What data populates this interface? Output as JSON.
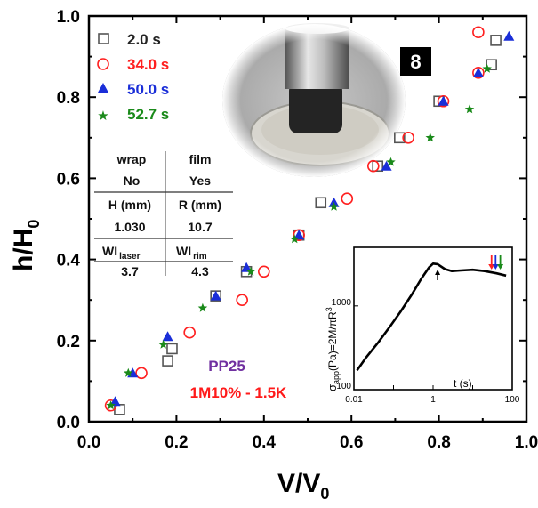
{
  "chart_data": {
    "type": "scatter",
    "xlabel": "V/V",
    "xlabel_sub": "0",
    "ylabel": "h/H",
    "ylabel_sub": "0",
    "xlim": [
      0,
      1.0
    ],
    "ylim": [
      0,
      1.0
    ],
    "xticks": [
      "0.0",
      "0.2",
      "0.4",
      "0.6",
      "0.8",
      "1.0"
    ],
    "yticks": [
      "0.0",
      "0.2",
      "0.4",
      "0.6",
      "0.8",
      "1.0"
    ],
    "legend_position": "top-left",
    "panel_label": "8",
    "series": [
      {
        "name": "2.0 s",
        "marker": "open-square",
        "color": "#555555",
        "x": [
          0.07,
          0.18,
          0.19,
          0.29,
          0.36,
          0.48,
          0.53,
          0.66,
          0.71,
          0.8,
          0.92,
          0.93
        ],
        "y": [
          0.03,
          0.15,
          0.18,
          0.31,
          0.37,
          0.46,
          0.54,
          0.63,
          0.7,
          0.79,
          0.88,
          0.94
        ]
      },
      {
        "name": "34.0 s",
        "marker": "open-circle",
        "color": "#ff2020",
        "x": [
          0.05,
          0.12,
          0.23,
          0.35,
          0.4,
          0.48,
          0.59,
          0.65,
          0.73,
          0.81,
          0.89,
          0.89
        ],
        "y": [
          0.04,
          0.12,
          0.22,
          0.3,
          0.37,
          0.46,
          0.55,
          0.63,
          0.7,
          0.79,
          0.86,
          0.96
        ]
      },
      {
        "name": "50.0 s",
        "marker": "filled-triangle",
        "color": "#1a2ed8",
        "x": [
          0.06,
          0.1,
          0.18,
          0.29,
          0.36,
          0.48,
          0.56,
          0.68,
          0.81,
          0.89,
          0.96
        ],
        "y": [
          0.05,
          0.12,
          0.21,
          0.31,
          0.38,
          0.46,
          0.54,
          0.63,
          0.79,
          0.86,
          0.95
        ]
      },
      {
        "name": "52.7 s",
        "marker": "filled-star",
        "color": "#1a8a1a",
        "x": [
          0.05,
          0.09,
          0.17,
          0.26,
          0.37,
          0.47,
          0.56,
          0.69,
          0.78,
          0.87,
          0.91
        ],
        "y": [
          0.04,
          0.12,
          0.19,
          0.28,
          0.37,
          0.45,
          0.53,
          0.64,
          0.7,
          0.77,
          0.87
        ]
      }
    ],
    "table": {
      "headers": [
        "wrap",
        "film"
      ],
      "rows": [
        [
          "No",
          "Yes"
        ],
        [
          "H (mm)",
          "R (mm)"
        ],
        [
          "1.030",
          "10.7"
        ],
        [
          "WI",
          "WI"
        ],
        [
          "3.7",
          "4.3"
        ]
      ],
      "row3_subscripts": [
        "laser",
        "rim"
      ]
    },
    "annotations": {
      "sample": "PP25",
      "sample_color": "#7030a0",
      "condition": "1M10% - 1.5K",
      "condition_color": "#ff1a1a"
    },
    "inset": {
      "type": "line",
      "xscale": "log",
      "yscale": "log",
      "xlabel": "t (s)",
      "ylabel": "σ",
      "ylabel_sub": "app",
      "ylabel_rest": "(Pa)=2M/πR",
      "ylabel_sup": "3",
      "xticks": [
        "0.01",
        "1",
        "100"
      ],
      "yticks": [
        "100",
        "1000"
      ],
      "xlim": [
        0.01,
        100
      ],
      "ylim": [
        100,
        5000
      ],
      "x": [
        0.012,
        0.02,
        0.04,
        0.08,
        0.15,
        0.3,
        0.5,
        0.8,
        1.0,
        1.3,
        2,
        3,
        5,
        10,
        20,
        40,
        70
      ],
      "y": [
        170,
        240,
        360,
        560,
        850,
        1400,
        2100,
        2900,
        3200,
        3150,
        2750,
        2600,
        2650,
        2700,
        2600,
        2450,
        2300
      ],
      "arrow_times": [
        1.3,
        30,
        38,
        50
      ],
      "arrow_colors": [
        "#000000",
        "#ff2020",
        "#1a2ed8",
        "#1a8a1a"
      ]
    }
  }
}
